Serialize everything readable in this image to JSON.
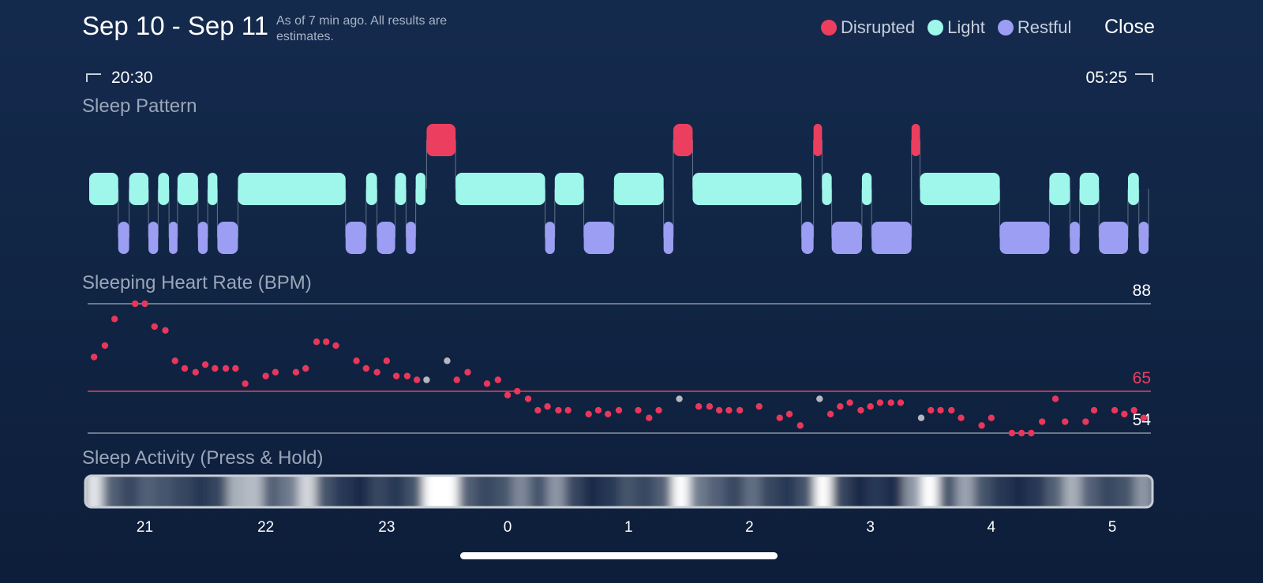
{
  "header": {
    "title": "Sep 10 - Sep 11",
    "note": "As of 7 min ago. All results are estimates.",
    "close": "Close"
  },
  "range": {
    "start": "20:30",
    "end": "05:25"
  },
  "chart_data": [
    {
      "type": "timeline",
      "title": "Sleep Pattern",
      "track_color": "#56647e",
      "series": [
        {
          "name": "Disrupted",
          "color": "#ec3f5f",
          "segments": [
            [
              23.33,
              23.57
            ],
            [
              25.37,
              25.53
            ],
            [
              26.53,
              26.6
            ],
            [
              27.34,
              27.41
            ]
          ]
        },
        {
          "name": "Light",
          "color": "#9ff6ea",
          "segments": [
            [
              20.54,
              20.78
            ],
            [
              20.87,
              21.03
            ],
            [
              21.11,
              21.2
            ],
            [
              21.27,
              21.44
            ],
            [
              21.52,
              21.6
            ],
            [
              21.77,
              22.66
            ],
            [
              22.83,
              22.92
            ],
            [
              23.07,
              23.16
            ],
            [
              23.24,
              23.32
            ],
            [
              23.57,
              24.31
            ],
            [
              24.39,
              24.63
            ],
            [
              24.88,
              25.29
            ],
            [
              25.53,
              26.43
            ],
            [
              26.6,
              26.68
            ],
            [
              26.93,
              27.01
            ],
            [
              27.41,
              28.07
            ],
            [
              28.48,
              28.65
            ],
            [
              28.73,
              28.89
            ],
            [
              29.13,
              29.22
            ]
          ]
        },
        {
          "name": "Restful",
          "color": "#9b9ef2",
          "segments": [
            [
              20.78,
              20.87
            ],
            [
              21.03,
              21.11
            ],
            [
              21.2,
              21.27
            ],
            [
              21.44,
              21.52
            ],
            [
              21.6,
              21.77
            ],
            [
              22.66,
              22.83
            ],
            [
              22.92,
              23.07
            ],
            [
              23.16,
              23.24
            ],
            [
              24.31,
              24.39
            ],
            [
              24.63,
              24.88
            ],
            [
              25.29,
              25.37
            ],
            [
              26.43,
              26.53
            ],
            [
              26.68,
              26.93
            ],
            [
              27.01,
              27.34
            ],
            [
              28.07,
              28.48
            ],
            [
              28.65,
              28.73
            ],
            [
              28.89,
              29.13
            ],
            [
              29.22,
              29.3
            ]
          ]
        }
      ]
    },
    {
      "type": "scatter",
      "title": "Sleeping Heart Rate (BPM)",
      "ylim": [
        54,
        88
      ],
      "yticks": [
        54,
        88
      ],
      "grid_color": "#8c94a6",
      "average": 65,
      "average_color": "#ec3f5f",
      "series": [
        {
          "color": "#e8375a",
          "x": [
            20.58,
            20.67,
            20.75,
            20.92,
            21.0,
            21.08,
            21.17,
            21.25,
            21.33,
            21.42,
            21.5,
            21.58,
            21.67,
            21.75,
            21.83,
            22.0,
            22.08,
            22.25,
            22.33,
            22.42,
            22.5,
            22.58,
            22.75,
            22.83,
            22.92,
            23.0,
            23.08,
            23.17,
            23.25,
            23.58,
            23.67,
            23.83,
            23.92,
            24.0,
            24.08,
            24.17,
            24.25,
            24.33,
            24.42,
            24.5,
            24.67,
            24.75,
            24.83,
            24.92,
            25.08,
            25.17,
            25.25,
            25.58,
            25.67,
            25.75,
            25.83,
            25.92,
            26.08,
            26.25,
            26.33,
            26.42,
            26.67,
            26.75,
            26.83,
            26.92,
            27.0,
            27.08,
            27.17,
            27.25,
            27.5,
            27.58,
            27.67,
            27.75,
            27.92,
            28.0,
            28.17,
            28.25,
            28.33,
            28.42,
            28.53,
            28.61,
            28.78,
            28.85,
            29.02,
            29.1,
            29.18,
            29.26
          ],
          "values": [
            74,
            77,
            84,
            88,
            88,
            82,
            81,
            73,
            71,
            70,
            72,
            71,
            71,
            71,
            67,
            69,
            70,
            70,
            71,
            78,
            78,
            77,
            73,
            71,
            70,
            73,
            69,
            69,
            68,
            68,
            70,
            67,
            68,
            64,
            65,
            63,
            60,
            61,
            60,
            60,
            59,
            60,
            59,
            60,
            60,
            58,
            60,
            61,
            61,
            60,
            60,
            60,
            61,
            58,
            59,
            56,
            59,
            61,
            62,
            60,
            61,
            62,
            62,
            62,
            60,
            60,
            60,
            58,
            56,
            58,
            54,
            54,
            54,
            57,
            63,
            57,
            57,
            60,
            60,
            59,
            60,
            58
          ]
        },
        {
          "color": "#b5b8bd",
          "x": [
            23.33,
            23.5,
            25.42,
            26.58,
            27.42
          ],
          "values": [
            68,
            73,
            63,
            63,
            58
          ]
        }
      ]
    },
    {
      "type": "heatstrip",
      "title": "Sleep Activity (Press & Hold)",
      "xlim": [
        20.54,
        29.3
      ],
      "xticks": [
        21,
        22,
        23,
        {
          "value": 24,
          "label": "0"
        },
        {
          "value": 25,
          "label": "1"
        },
        {
          "value": 26,
          "label": "2"
        },
        {
          "value": 27,
          "label": "3"
        },
        {
          "value": 28,
          "label": "4"
        },
        {
          "value": 29,
          "label": "5"
        }
      ],
      "values": [
        90,
        40,
        30,
        40,
        35,
        30,
        25,
        30,
        70,
        75,
        40,
        50,
        85,
        35,
        25,
        20,
        30,
        25,
        35,
        100,
        100,
        40,
        30,
        35,
        55,
        35,
        60,
        30,
        20,
        25,
        35,
        30,
        40,
        100,
        50,
        40,
        30,
        45,
        30,
        25,
        35,
        100,
        30,
        20,
        25,
        20,
        60,
        100,
        35,
        65,
        35,
        25,
        20,
        25,
        40,
        70,
        40,
        30,
        35,
        60
      ]
    }
  ]
}
